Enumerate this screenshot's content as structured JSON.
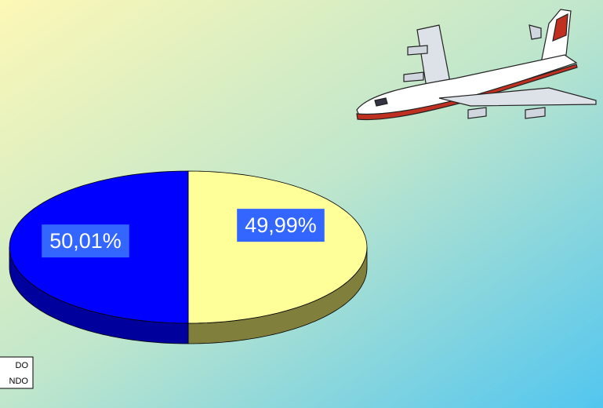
{
  "chart_data": {
    "type": "pie",
    "categories": [
      "DO",
      "NDO"
    ],
    "values": [
      49.99,
      50.01
    ],
    "value_labels": [
      "49,99%",
      "50,01%"
    ],
    "colors": [
      "#ffff99",
      "#0000ff"
    ],
    "side_colors": [
      "#80803c",
      "#00009c"
    ],
    "label_background": "#3366ff"
  }
}
